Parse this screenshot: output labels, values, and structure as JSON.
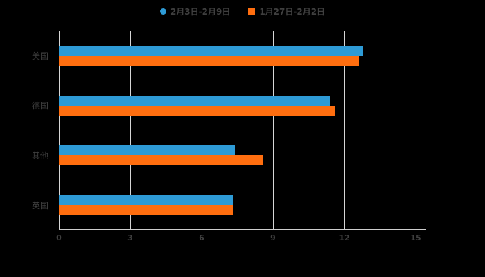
{
  "chart_data": {
    "type": "bar",
    "orientation": "horizontal",
    "title": "",
    "categories": [
      "美国",
      "德国",
      "其他",
      "英国"
    ],
    "series": [
      {
        "name": "2月3日-2月9日",
        "color": "#2E9BD6",
        "marker": "circle",
        "values": [
          12.8,
          11.4,
          7.4,
          7.3
        ]
      },
      {
        "name": "1月27日-2月2日",
        "color": "#FF6E0F",
        "marker": "square",
        "values": [
          12.6,
          11.6,
          8.6,
          7.3
        ]
      }
    ],
    "value_axis": {
      "min": 0,
      "max": 15,
      "ticks": [
        0,
        3,
        6,
        9,
        12,
        15
      ]
    },
    "grid": true,
    "legend_position": "top",
    "background": "#000000",
    "text_color": "#3f3f3f"
  }
}
